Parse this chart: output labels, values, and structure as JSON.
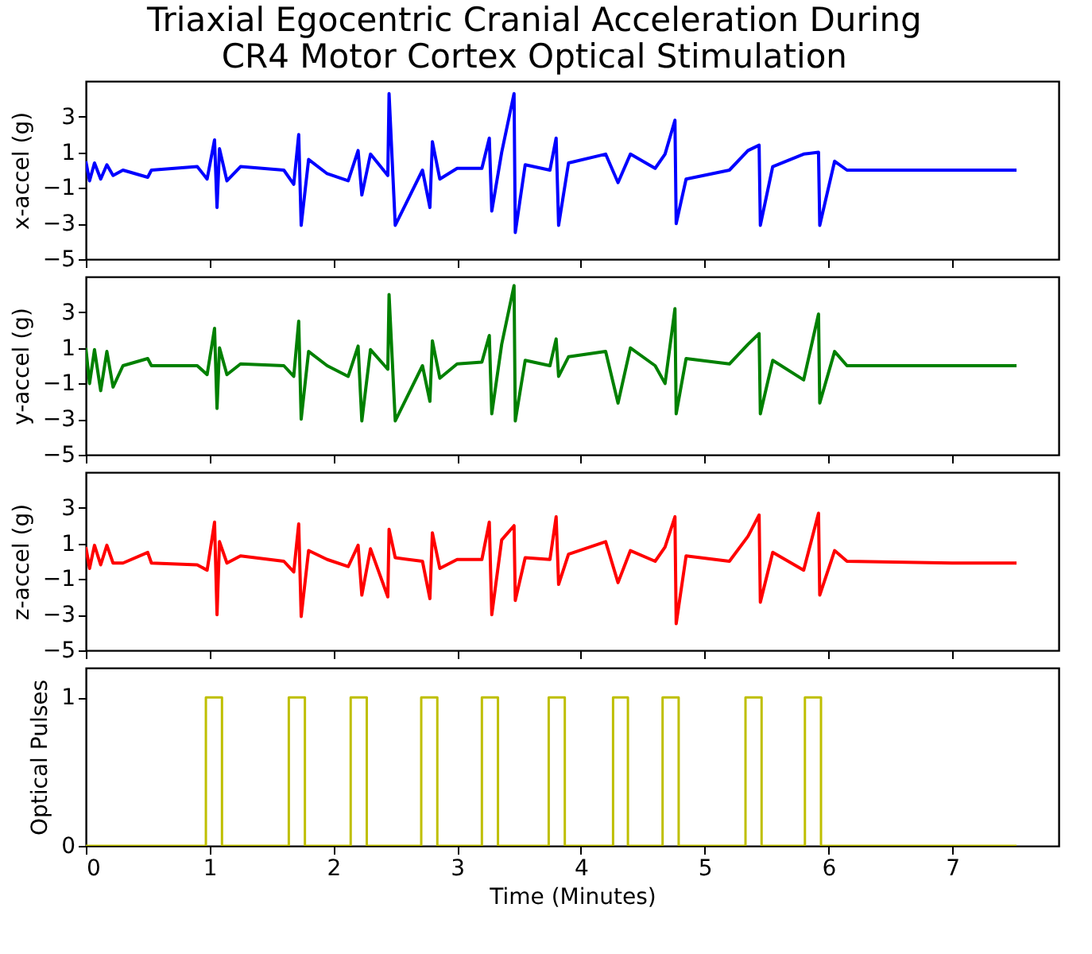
{
  "chart_data": [
    {
      "type": "line",
      "title": "Triaxial Egocentric Cranial Acceleration During\nCR4 Motor Cortex Optical Stimulation",
      "ylabel": "x-accel (g)",
      "color": "#0000ff",
      "tick_labels": "y",
      "xlim": [
        0,
        7.86
      ],
      "xticks": [
        0,
        1,
        2,
        3,
        4,
        5,
        6,
        7
      ],
      "ylim": [
        -5,
        5
      ],
      "yticks": [
        -5,
        -3,
        -1,
        1,
        3
      ],
      "x": [
        0,
        0.03,
        0.07,
        0.12,
        0.17,
        0.22,
        0.3,
        0.5,
        0.53,
        0.9,
        0.98,
        1.04,
        1.06,
        1.08,
        1.14,
        1.25,
        1.6,
        1.68,
        1.72,
        1.74,
        1.8,
        1.95,
        2.12,
        2.2,
        2.23,
        2.3,
        2.44,
        2.45,
        2.5,
        2.72,
        2.78,
        2.8,
        2.86,
        3.0,
        3.2,
        3.26,
        3.28,
        3.36,
        3.46,
        3.47,
        3.55,
        3.75,
        3.8,
        3.82,
        3.9,
        4.2,
        4.3,
        4.4,
        4.6,
        4.68,
        4.76,
        4.77,
        4.85,
        5.2,
        5.35,
        5.44,
        5.45,
        5.55,
        5.8,
        5.92,
        5.93,
        6.05,
        6.15,
        7.0,
        7.52
      ],
      "values": [
        0.5,
        -0.6,
        0.4,
        -0.5,
        0.3,
        -0.3,
        0,
        -0.4,
        0,
        0.2,
        -0.5,
        1.7,
        -2.1,
        1.2,
        -0.6,
        0.2,
        0,
        -0.8,
        2.0,
        -3.1,
        0.6,
        -0.2,
        -0.6,
        1.1,
        -1.4,
        0.9,
        -0.3,
        4.3,
        -3.1,
        0,
        -2.1,
        1.6,
        -0.5,
        0.1,
        0.1,
        1.8,
        -2.3,
        1.0,
        4.3,
        -3.5,
        0.3,
        0,
        1.8,
        -3.1,
        0.4,
        0.9,
        -0.7,
        0.9,
        0.1,
        0.9,
        2.8,
        -3.0,
        -0.5,
        0,
        1.1,
        1.4,
        -3.1,
        0.2,
        0.9,
        1.0,
        -3.1,
        0.5,
        0,
        0,
        0
      ]
    },
    {
      "type": "line",
      "ylabel": "y-accel (g)",
      "color": "#008000",
      "tick_labels": "y",
      "xlim": [
        0,
        7.86
      ],
      "xticks": [
        0,
        1,
        2,
        3,
        4,
        5,
        6,
        7
      ],
      "ylim": [
        -5,
        5
      ],
      "yticks": [
        -5,
        -3,
        -1,
        1,
        3
      ],
      "x": [
        0,
        0.03,
        0.07,
        0.12,
        0.17,
        0.22,
        0.3,
        0.5,
        0.53,
        0.9,
        0.98,
        1.04,
        1.06,
        1.08,
        1.14,
        1.25,
        1.6,
        1.68,
        1.72,
        1.74,
        1.8,
        1.95,
        2.12,
        2.2,
        2.23,
        2.3,
        2.44,
        2.45,
        2.5,
        2.72,
        2.78,
        2.8,
        2.86,
        3.0,
        3.2,
        3.26,
        3.28,
        3.36,
        3.46,
        3.47,
        3.55,
        3.75,
        3.8,
        3.82,
        3.9,
        4.2,
        4.3,
        4.4,
        4.6,
        4.68,
        4.76,
        4.77,
        4.85,
        5.2,
        5.35,
        5.44,
        5.45,
        5.55,
        5.8,
        5.92,
        5.93,
        6.05,
        6.15,
        7.0,
        7.52
      ],
      "values": [
        1.0,
        -1.0,
        0.9,
        -1.4,
        0.8,
        -1.2,
        0,
        0.4,
        0,
        0,
        -0.5,
        2.1,
        -2.4,
        1.0,
        -0.5,
        0.1,
        0,
        -0.6,
        2.5,
        -3.0,
        0.8,
        0,
        -0.6,
        1.1,
        -3.1,
        0.9,
        -0.2,
        4.0,
        -3.1,
        0,
        -2.0,
        1.4,
        -0.7,
        0.1,
        0.2,
        1.7,
        -2.7,
        1.2,
        4.5,
        -3.1,
        0.3,
        0,
        1.5,
        -0.6,
        0.5,
        0.8,
        -2.1,
        1.0,
        0,
        -1.0,
        3.2,
        -2.7,
        0.4,
        0.1,
        1.2,
        1.8,
        -2.7,
        0.3,
        -0.8,
        2.9,
        -2.1,
        0.8,
        0,
        0,
        0
      ]
    },
    {
      "type": "line",
      "ylabel": "z-accel (g)",
      "color": "#ff0000",
      "tick_labels": "y",
      "xlim": [
        0,
        7.86
      ],
      "xticks": [
        0,
        1,
        2,
        3,
        4,
        5,
        6,
        7
      ],
      "ylim": [
        -5,
        5
      ],
      "yticks": [
        -5,
        -3,
        -1,
        1,
        3
      ],
      "x": [
        0,
        0.03,
        0.07,
        0.12,
        0.17,
        0.22,
        0.3,
        0.5,
        0.53,
        0.9,
        0.98,
        1.04,
        1.06,
        1.08,
        1.14,
        1.25,
        1.6,
        1.68,
        1.72,
        1.74,
        1.8,
        1.95,
        2.12,
        2.2,
        2.23,
        2.3,
        2.44,
        2.45,
        2.5,
        2.72,
        2.78,
        2.8,
        2.86,
        3.0,
        3.2,
        3.26,
        3.28,
        3.36,
        3.46,
        3.47,
        3.55,
        3.75,
        3.8,
        3.82,
        3.9,
        4.2,
        4.3,
        4.4,
        4.6,
        4.68,
        4.76,
        4.77,
        4.85,
        5.2,
        5.35,
        5.44,
        5.45,
        5.55,
        5.8,
        5.92,
        5.93,
        6.05,
        6.15,
        7.0,
        7.52
      ],
      "values": [
        0.8,
        -0.4,
        0.9,
        -0.2,
        0.9,
        -0.1,
        -0.1,
        0.5,
        -0.1,
        -0.2,
        -0.5,
        2.2,
        -3.0,
        1.1,
        -0.1,
        0.3,
        0,
        -0.6,
        2.1,
        -3.1,
        0.6,
        0.1,
        -0.3,
        0.9,
        -1.9,
        0.7,
        -2.0,
        1.8,
        0.2,
        0,
        -2.1,
        1.6,
        -0.4,
        0.1,
        0.1,
        2.2,
        -3.0,
        1.2,
        2.0,
        -2.2,
        0.2,
        0.1,
        2.5,
        -1.3,
        0.4,
        1.1,
        -1.2,
        0.6,
        0,
        0.8,
        2.5,
        -3.5,
        0.3,
        0,
        1.4,
        2.6,
        -2.3,
        0.5,
        -0.5,
        2.7,
        -1.9,
        0.6,
        0,
        -0.1,
        -0.1
      ]
    },
    {
      "type": "step",
      "ylabel": "Optical Pulses",
      "xlabel": "Time (Minutes)",
      "color": "#bfbf00",
      "xlim": [
        0,
        7.86
      ],
      "xticks": [
        0,
        1,
        2,
        3,
        4,
        5,
        6,
        7
      ],
      "ylim": [
        0,
        1.2
      ],
      "yticks": [
        0,
        1
      ],
      "x": [
        0,
        0.97,
        1.1,
        1.64,
        1.77,
        2.14,
        2.27,
        2.71,
        2.84,
        3.2,
        3.33,
        3.74,
        3.87,
        4.26,
        4.38,
        4.66,
        4.79,
        5.33,
        5.46,
        5.81,
        5.94,
        7.52
      ],
      "values": [
        0,
        1,
        0,
        1,
        0,
        1,
        0,
        1,
        0,
        1,
        0,
        1,
        0,
        1,
        0,
        1,
        0,
        1,
        0,
        1,
        0,
        0
      ]
    }
  ]
}
